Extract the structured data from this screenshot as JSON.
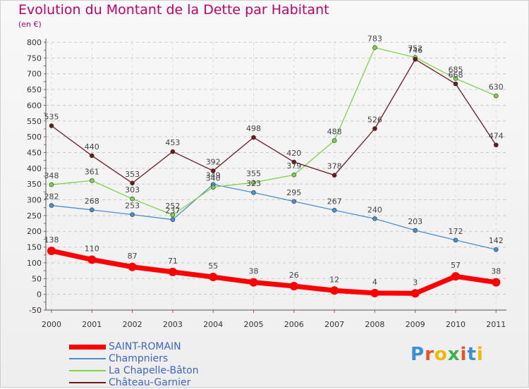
{
  "header": {
    "title": "Evolution du Montant de la Dette par Habitant",
    "unit": "(en €)"
  },
  "logo": {
    "text": "Proxiti",
    "letter_colors": [
      "#3b8fd8",
      "#e8542a",
      "#f2b800",
      "#3db34a",
      "#e8542a",
      "#3b8fd8",
      "#f2b800"
    ]
  },
  "chart_data": {
    "type": "line",
    "title": "Evolution du Montant de la Dette par Habitant",
    "ylabel": "(en €)",
    "xlabel": "",
    "x": [
      "2000",
      "2001",
      "2002",
      "2003",
      "2004",
      "2005",
      "2006",
      "2007",
      "2008",
      "2009",
      "2010",
      "2011"
    ],
    "ylim": [
      -50,
      800
    ],
    "yticks": [
      -50,
      0,
      50,
      100,
      150,
      200,
      250,
      300,
      350,
      400,
      450,
      500,
      550,
      600,
      650,
      700,
      750,
      800
    ],
    "grid": "horizontal dashed",
    "legend_position": "bottom-left",
    "series": [
      {
        "name": "SAINT-ROMAIN",
        "color": "#ff0000",
        "values": [
          138,
          110,
          87,
          71,
          55,
          38,
          26,
          12,
          4,
          3,
          57,
          38
        ]
      },
      {
        "name": "Champniers",
        "color": "#4a8fcf",
        "values": [
          282,
          268,
          253,
          237,
          349,
          323,
          295,
          267,
          240,
          203,
          172,
          142
        ]
      },
      {
        "name": "La Chapelle-Bâton",
        "color": "#7cd34a",
        "values": [
          348,
          361,
          303,
          252,
          340,
          355,
          379,
          488,
          783,
          752,
          685,
          630
        ]
      },
      {
        "name": "Château-Garnier",
        "color": "#6b1a1a",
        "values": [
          535,
          440,
          353,
          453,
          392,
          498,
          420,
          378,
          526,
          746,
          668,
          474
        ]
      }
    ]
  }
}
